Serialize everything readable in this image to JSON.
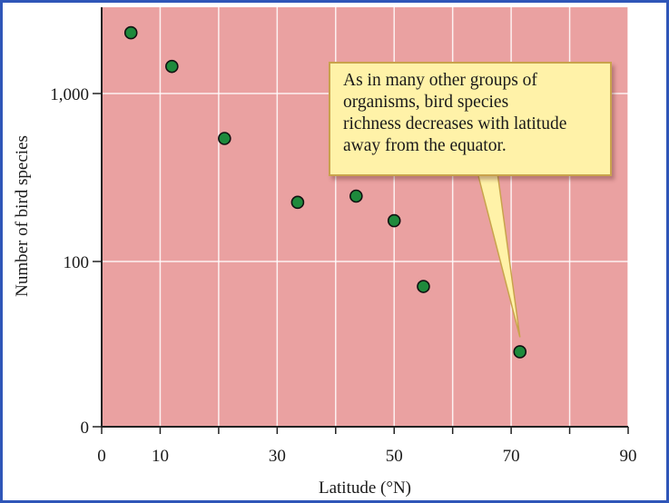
{
  "chart_data": {
    "type": "scatter",
    "xlabel": "Latitude (°N)",
    "ylabel": "Number of bird species",
    "xlim": [
      0,
      90
    ],
    "x_ticks": [
      0,
      10,
      30,
      50,
      70,
      90
    ],
    "x_tick_labels": [
      "0",
      "10",
      "30",
      "50",
      "70",
      "90"
    ],
    "y_scale": "log",
    "y_ticks": [
      0,
      100,
      1000
    ],
    "y_tick_labels": [
      "0",
      "100",
      "1,000"
    ],
    "grid": true,
    "background_color": "#eaa1a1",
    "marker_color": "#1e8a3c",
    "points": [
      {
        "x": 5,
        "y": 2300
      },
      {
        "x": 12,
        "y": 1450
      },
      {
        "x": 21,
        "y": 540
      },
      {
        "x": 33.5,
        "y": 225
      },
      {
        "x": 43.5,
        "y": 245
      },
      {
        "x": 50,
        "y": 175
      },
      {
        "x": 55,
        "y": 71
      },
      {
        "x": 71.5,
        "y": 29
      }
    ],
    "annotation": {
      "text": "As in many other groups of\norganisms, bird species\nrichness decreases with latitude\naway from the equator.",
      "points_to": {
        "x": 71.5,
        "y": 29
      }
    }
  }
}
